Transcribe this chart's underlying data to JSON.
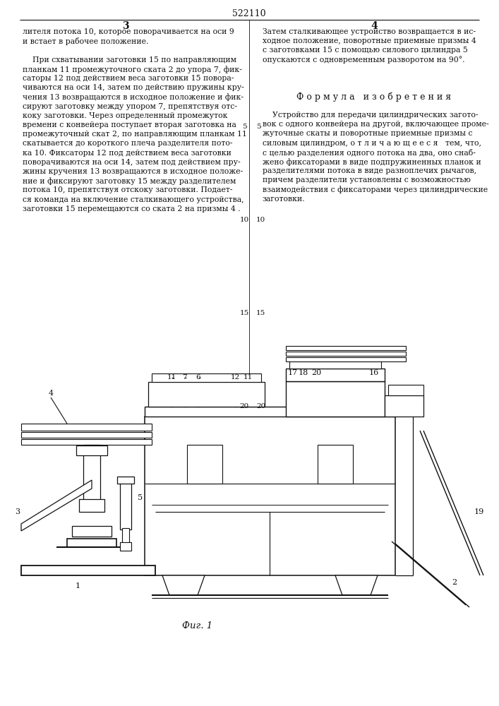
{
  "background_color": "#ffffff",
  "text_color": "#111111",
  "line_color": "#111111",
  "page_number": "522110",
  "col_left_num": "3",
  "col_right_num": "4",
  "fig_caption": "Фиг. 1",
  "left_col_lines": [
    "лителя потока 10, которое поворачивается на оси 9",
    "и встает в рабочее положение.",
    "",
    "    При схватывании заготовки 15 по направляющим",
    "планкам 11 промежуточного ската 2 до упора 7, фик-",
    "саторы 12 под действием веса заготовки 15 повора-",
    "чиваются на оси 14, затем по действию пружины кру-",
    "чения 13 возвращаются в исходное положение и фик-",
    "сируют заготовку между упором 7, препятствуя отс-",
    "коку заготовки. Через определенный промежуток",
    "времени с конвейера поступает вторая заготовка на",
    "промежуточный скат 2, по направляющим планкам 11",
    "скатывается до короткого плеча разделителя пото-",
    "ка 10. Фиксаторы 12 под действием веса заготовки",
    "поворачиваются на оси 14, затем под действием пру-",
    "жины кручения 13 возвращаются в исходное положе-",
    "ние и фиксируют заготовку 15 между разделителем",
    "потока 10, препятствуя отскоку заготовки. Подает-",
    "ся команда на включение сталкивающего устройства,",
    "заготовки 15 перемещаются со ската 2 на призмы 4 ."
  ],
  "right_top_lines": [
    "Затем сталкивающее устройство возвращается в ис-",
    "ходное положение, поворотные приемные призмы 4",
    "с заготовками 15 с помощью силового цилиндра 5",
    "опускаются с одновременным разворотом на 90°."
  ],
  "formula_header": "Ф о р м у л а   и з о б р е т е н и я",
  "right_formula_lines": [
    "    Устройство для передачи цилиндрических загото-",
    "вок с одного конвейера на другой, включающее проме-",
    "жуточные скаты и поворотные приемные призмы с",
    "силовым цилиндром, о т л и ч а ю щ е е с я   тем, что,",
    "с целью разделения одного потока на два, оно снаб-",
    "жено фиксаторами в виде подпружиненных планок и",
    "разделителями потока в виде разноплечих рычагов,",
    "причем разделители установлены с возможностью",
    "взаимодействия с фиксаторами через цилиндрические",
    "заготовки."
  ]
}
